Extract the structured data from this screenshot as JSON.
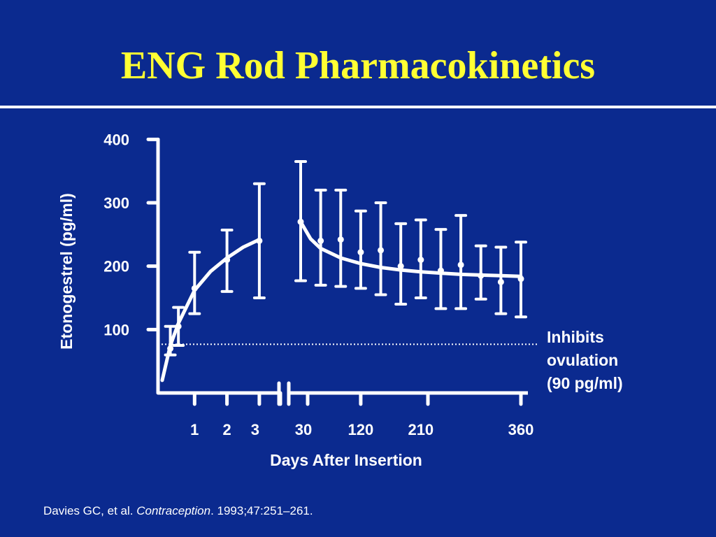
{
  "title": "ENG Rod Pharmacokinetics",
  "threshold": {
    "value": 90,
    "label_lines": [
      "Inhibits",
      "ovulation",
      "(90 pg/ml)"
    ]
  },
  "citation": {
    "authors": "Davies GC, et al. ",
    "journal": "Contraception",
    "details": ". 1993;47:251–261."
  },
  "colors": {
    "background": "#0b2a8f",
    "title": "#ffff33",
    "foreground": "#ffffff"
  },
  "chart_data": {
    "type": "line",
    "title": "ENG Rod Pharmacokinetics",
    "xlabel": "Days After Insertion",
    "ylabel": "Etonogestrel (pg/ml)",
    "ylim": [
      0,
      400
    ],
    "yticks": [
      100,
      200,
      300,
      400
    ],
    "x_axis_break": "between day 3 and day 30",
    "xtick_labels": [
      "1",
      "2",
      "3",
      "30",
      "120",
      "210",
      "360"
    ],
    "series": [
      {
        "type": "errorbar",
        "points": [
          {
            "x": 0.25,
            "y": 70,
            "low": 60,
            "high": 105
          },
          {
            "x": 0.5,
            "y": 105,
            "low": 75,
            "high": 135
          },
          {
            "x": 1,
            "y": 165,
            "low": 125,
            "high": 222
          },
          {
            "x": 2,
            "y": 210,
            "low": 160,
            "high": 257
          },
          {
            "x": 3,
            "y": 240,
            "low": 150,
            "high": 330
          },
          {
            "x": 30,
            "y": 270,
            "low": 177,
            "high": 365
          },
          {
            "x": 60,
            "y": 240,
            "low": 170,
            "high": 320
          },
          {
            "x": 90,
            "y": 242,
            "low": 168,
            "high": 320
          },
          {
            "x": 120,
            "y": 222,
            "low": 165,
            "high": 287
          },
          {
            "x": 150,
            "y": 225,
            "low": 155,
            "high": 300
          },
          {
            "x": 180,
            "y": 200,
            "low": 140,
            "high": 267
          },
          {
            "x": 210,
            "y": 210,
            "low": 150,
            "high": 273
          },
          {
            "x": 240,
            "y": 193,
            "low": 133,
            "high": 258
          },
          {
            "x": 270,
            "y": 202,
            "low": 133,
            "high": 280
          },
          {
            "x": 300,
            "y": 185,
            "low": 148,
            "high": 232
          },
          {
            "x": 330,
            "y": 175,
            "low": 125,
            "high": 230
          },
          {
            "x": 360,
            "y": 180,
            "low": 120,
            "high": 238
          }
        ]
      }
    ],
    "fit_curves": [
      {
        "x": [
          0,
          0.25,
          0.5,
          1,
          1.5,
          2,
          2.5,
          3
        ],
        "y": [
          20,
          75,
          110,
          162,
          192,
          213,
          230,
          242
        ]
      },
      {
        "x": [
          30,
          45,
          60,
          90,
          120,
          150,
          180,
          210,
          240,
          270,
          300,
          330,
          360
        ],
        "y": [
          270,
          243,
          228,
          213,
          204,
          198,
          194,
          191,
          189,
          187,
          186,
          185,
          184
        ]
      }
    ]
  }
}
